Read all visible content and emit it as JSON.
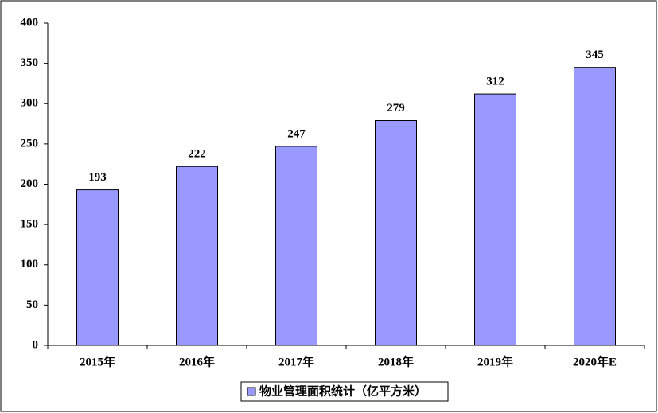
{
  "chart_data": {
    "type": "bar",
    "categories": [
      "2015年",
      "2016年",
      "2017年",
      "2018年",
      "2019年",
      "2020年E"
    ],
    "series": [
      {
        "name": "物业管理面积统计（亿平方米）",
        "color": "#9999ff",
        "values": [
          193,
          222,
          247,
          279,
          312,
          345
        ]
      }
    ],
    "ylim": [
      0,
      400
    ],
    "yticks": [
      0,
      50,
      100,
      150,
      200,
      250,
      300,
      350,
      400
    ],
    "grid": false,
    "legend": "bottom"
  }
}
